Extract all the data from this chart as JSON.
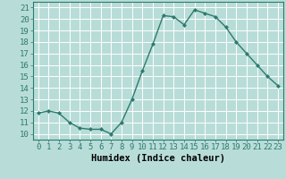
{
  "x": [
    0,
    1,
    2,
    3,
    4,
    5,
    6,
    7,
    8,
    9,
    10,
    11,
    12,
    13,
    14,
    15,
    16,
    17,
    18,
    19,
    20,
    21,
    22,
    23
  ],
  "y": [
    11.8,
    12.0,
    11.8,
    11.0,
    10.5,
    10.4,
    10.4,
    10.0,
    11.0,
    13.0,
    15.5,
    17.8,
    20.3,
    20.2,
    19.5,
    20.8,
    20.5,
    20.2,
    19.3,
    18.0,
    17.0,
    16.0,
    15.0,
    14.2
  ],
  "xlabel": "Humidex (Indice chaleur)",
  "ylim": [
    9.5,
    21.5
  ],
  "xlim": [
    -0.5,
    23.5
  ],
  "yticks": [
    10,
    11,
    12,
    13,
    14,
    15,
    16,
    17,
    18,
    19,
    20,
    21
  ],
  "xticks": [
    0,
    1,
    2,
    3,
    4,
    5,
    6,
    7,
    8,
    9,
    10,
    11,
    12,
    13,
    14,
    15,
    16,
    17,
    18,
    19,
    20,
    21,
    22,
    23
  ],
  "line_color": "#2d7a6e",
  "marker_color": "#2d7a6e",
  "bg_color": "#b8ddd8",
  "grid_color": "#ffffff",
  "xlabel_fontsize": 7.5,
  "tick_fontsize": 6.5
}
